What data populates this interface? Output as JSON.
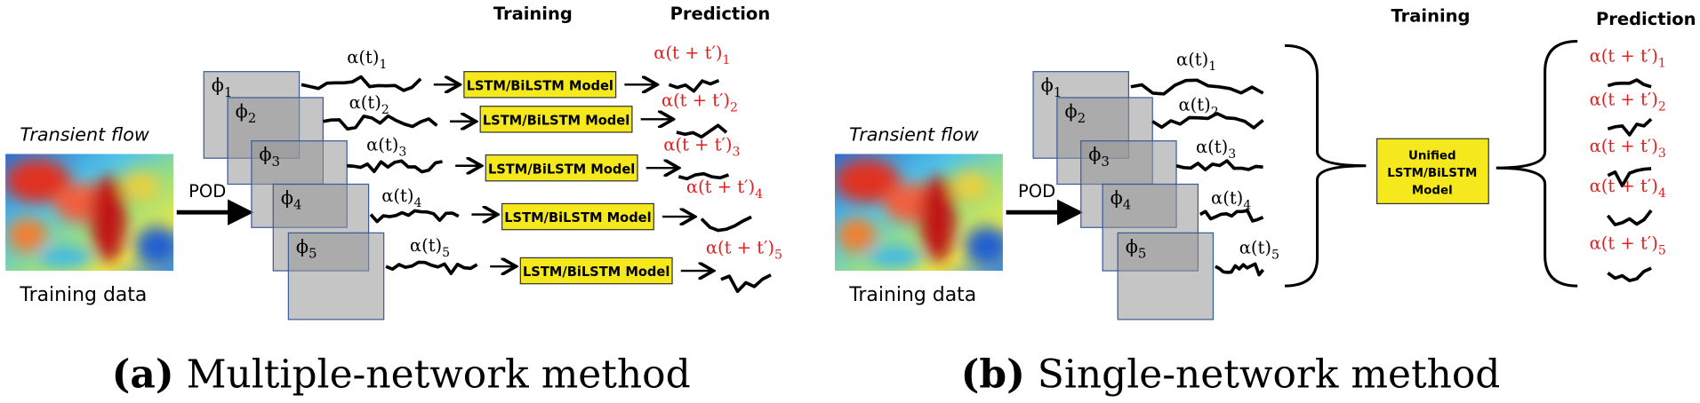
{
  "panels": [
    {
      "label": "(a)",
      "caption": "Multiple-network method",
      "header_training": "Training",
      "header_prediction": "Prediction",
      "flow_title": "Transient flow",
      "flow_caption": "Training data",
      "method": "POD",
      "modes": [
        {
          "basis": "ϕ",
          "index": "1",
          "coefficient": "α(t)",
          "prediction": "α(t + t′)",
          "model": "LSTM/BiLSTM Model"
        },
        {
          "basis": "ϕ",
          "index": "2",
          "coefficient": "α(t)",
          "prediction": "α(t + t′)",
          "model": "LSTM/BiLSTM Model"
        },
        {
          "basis": "ϕ",
          "index": "3",
          "coefficient": "α(t)",
          "prediction": "α(t + t′)",
          "model": "LSTM/BiLSTM Model"
        },
        {
          "basis": "ϕ",
          "index": "4",
          "coefficient": "α(t)",
          "prediction": "α(t + t′)",
          "model": "LSTM/BiLSTM Model"
        },
        {
          "basis": "ϕ",
          "index": "5",
          "coefficient": "α(t)",
          "prediction": "α(t + t′)",
          "model": "LSTM/BiLSTM Model"
        }
      ]
    },
    {
      "label": "(b)",
      "caption": "Single-network method",
      "header_training": "Training",
      "header_prediction": "Prediction",
      "flow_title": "Transient flow",
      "flow_caption": "Training data",
      "method": "POD",
      "unified_model": [
        "Unified",
        "LSTM/BiLSTM",
        "Model"
      ],
      "modes": [
        {
          "basis": "ϕ",
          "index": "1",
          "coefficient": "α(t)",
          "prediction": "α(t + t′)"
        },
        {
          "basis": "ϕ",
          "index": "2",
          "coefficient": "α(t)",
          "prediction": "α(t + t′)"
        },
        {
          "basis": "ϕ",
          "index": "3",
          "coefficient": "α(t)",
          "prediction": "α(t + t′)"
        },
        {
          "basis": "ϕ",
          "index": "4",
          "coefficient": "α(t)",
          "prediction": "α(t + t′)"
        },
        {
          "basis": "ϕ",
          "index": "5",
          "coefficient": "α(t)",
          "prediction": "α(t + t′)"
        }
      ]
    }
  ]
}
